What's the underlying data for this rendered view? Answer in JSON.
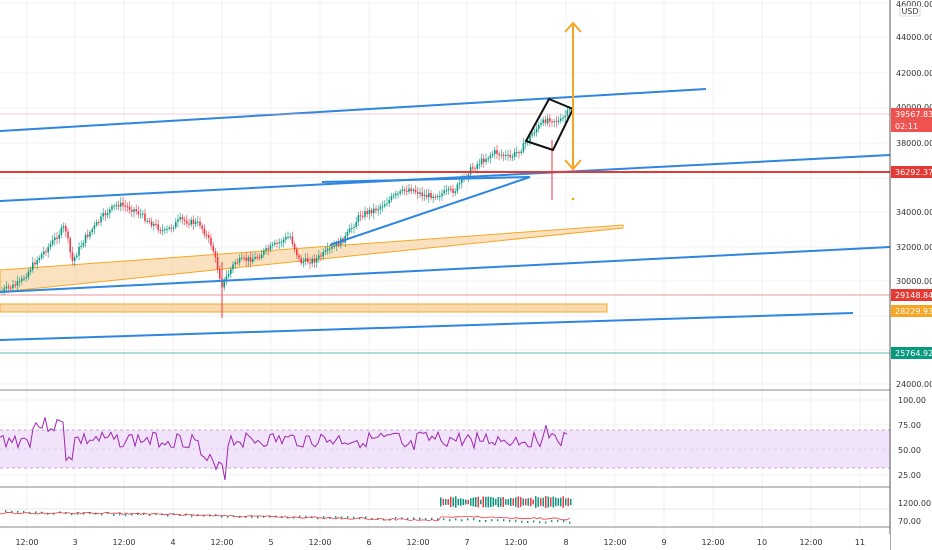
{
  "currency": "USD",
  "price_scale": {
    "ticks": [
      "46000.00",
      "44000.00",
      "42000.00",
      "40000.00",
      "38000.00",
      "34000.00",
      "32000.00",
      "30000.00",
      "24000.00"
    ],
    "tags": [
      {
        "label": "39567.83",
        "color": "#ef5350"
      },
      {
        "label": "02:11",
        "color": "#ef5350"
      },
      {
        "label": "36292.37",
        "color": "#e53935"
      },
      {
        "label": "29148.84",
        "color": "#e53935"
      },
      {
        "label": "28229.93",
        "color": "#f6a623"
      },
      {
        "label": "25764.92",
        "color": "#089981"
      }
    ]
  },
  "rsi_scale": {
    "ticks": [
      "100.00",
      "75.00",
      "50.00",
      "25.00"
    ]
  },
  "volume_scale": {
    "ticks": [
      "1200.00",
      "70.00"
    ]
  },
  "time_axis": {
    "labels": [
      "12:00",
      "3",
      "12:00",
      "4",
      "12:00",
      "5",
      "12:00",
      "6",
      "12:00",
      "7",
      "12:00",
      "8",
      "12:00",
      "9",
      "12:00",
      "10",
      "12:00",
      "11"
    ]
  },
  "colors": {
    "channel": "#2e86de",
    "support": "#e53935",
    "zone": "#f6a623",
    "candle_up": "#089981",
    "candle_down": "#f23645",
    "rsi_line": "#9c27b0",
    "rsi_band": "#f1e4fa"
  }
}
